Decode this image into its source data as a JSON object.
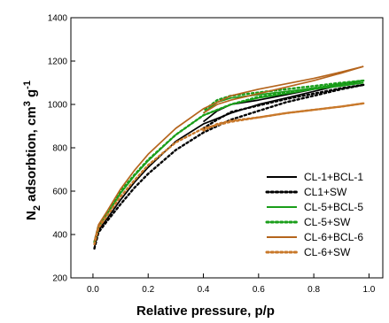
{
  "chart_data": {
    "type": "line",
    "xlabel": "Relative pressure, p/p",
    "ylabel": {
      "base": "N",
      "sub": "2",
      "mid": " adsorbtion, cm",
      "sup1": "3",
      "unit": " g",
      "sup2": "-1"
    },
    "xlim": [
      -0.08,
      1.05
    ],
    "ylim": [
      200,
      1400
    ],
    "xticks": [
      "0.0",
      "0.2",
      "0.4",
      "0.6",
      "0.8",
      "1.0"
    ],
    "xtick_values": [
      0.0,
      0.2,
      0.4,
      0.6,
      0.8,
      1.0
    ],
    "yticks": [
      "200",
      "400",
      "600",
      "800",
      "1000",
      "1200",
      "1400"
    ],
    "ytick_values": [
      200,
      400,
      600,
      800,
      1000,
      1200,
      1400
    ],
    "legend_position": "center-right",
    "series": [
      {
        "name": "CL-1+BCL-1",
        "color": "#000000",
        "style": "solid",
        "adsorption": [
          [
            0.005,
            340
          ],
          [
            0.02,
            420
          ],
          [
            0.05,
            470
          ],
          [
            0.1,
            560
          ],
          [
            0.15,
            640
          ],
          [
            0.2,
            710
          ],
          [
            0.3,
            830
          ],
          [
            0.4,
            910
          ],
          [
            0.5,
            960
          ],
          [
            0.6,
            1000
          ],
          [
            0.7,
            1030
          ],
          [
            0.8,
            1060
          ],
          [
            0.9,
            1090
          ],
          [
            0.98,
            1110
          ]
        ],
        "desorption": [
          [
            0.98,
            1110
          ],
          [
            0.9,
            1095
          ],
          [
            0.8,
            1070
          ],
          [
            0.7,
            1045
          ],
          [
            0.6,
            1020
          ],
          [
            0.5,
            1000
          ],
          [
            0.45,
            970
          ],
          [
            0.4,
            920
          ]
        ]
      },
      {
        "name": "CL1+SW",
        "color": "#000000",
        "style": "dotted",
        "adsorption": [
          [
            0.005,
            335
          ],
          [
            0.02,
            410
          ],
          [
            0.05,
            460
          ],
          [
            0.1,
            540
          ],
          [
            0.15,
            615
          ],
          [
            0.2,
            680
          ],
          [
            0.3,
            790
          ],
          [
            0.4,
            870
          ],
          [
            0.5,
            930
          ],
          [
            0.6,
            970
          ],
          [
            0.7,
            1010
          ],
          [
            0.8,
            1040
          ],
          [
            0.9,
            1070
          ],
          [
            0.98,
            1090
          ]
        ],
        "desorption": [
          [
            0.98,
            1090
          ],
          [
            0.9,
            1075
          ],
          [
            0.8,
            1050
          ],
          [
            0.7,
            1025
          ],
          [
            0.6,
            995
          ],
          [
            0.5,
            965
          ],
          [
            0.45,
            930
          ],
          [
            0.4,
            890
          ]
        ]
      },
      {
        "name": "CL-5+BCL-5",
        "color": "#1a9e1a",
        "style": "solid",
        "adsorption": [
          [
            0.005,
            360
          ],
          [
            0.02,
            430
          ],
          [
            0.05,
            490
          ],
          [
            0.1,
            590
          ],
          [
            0.15,
            670
          ],
          [
            0.2,
            740
          ],
          [
            0.3,
            860
          ],
          [
            0.4,
            950
          ],
          [
            0.5,
            1000
          ],
          [
            0.6,
            1030
          ],
          [
            0.7,
            1050
          ],
          [
            0.8,
            1070
          ],
          [
            0.9,
            1085
          ],
          [
            0.98,
            1100
          ]
        ],
        "desorption": [
          [
            0.98,
            1100
          ],
          [
            0.9,
            1090
          ],
          [
            0.8,
            1075
          ],
          [
            0.7,
            1060
          ],
          [
            0.6,
            1045
          ],
          [
            0.5,
            1030
          ],
          [
            0.45,
            1010
          ],
          [
            0.4,
            960
          ]
        ]
      },
      {
        "name": "CL-5+SW",
        "color": "#1a9e1a",
        "style": "dotted",
        "adsorption": [
          [
            0.005,
            365
          ],
          [
            0.02,
            440
          ],
          [
            0.05,
            500
          ],
          [
            0.1,
            600
          ],
          [
            0.15,
            675
          ],
          [
            0.2,
            745
          ],
          [
            0.3,
            860
          ],
          [
            0.4,
            950
          ],
          [
            0.5,
            1000
          ],
          [
            0.6,
            1035
          ],
          [
            0.7,
            1055
          ],
          [
            0.8,
            1075
          ],
          [
            0.9,
            1095
          ],
          [
            0.98,
            1110
          ]
        ],
        "desorption": [
          [
            0.98,
            1110
          ],
          [
            0.9,
            1100
          ],
          [
            0.8,
            1085
          ],
          [
            0.7,
            1070
          ],
          [
            0.6,
            1055
          ],
          [
            0.5,
            1040
          ],
          [
            0.45,
            1020
          ],
          [
            0.4,
            970
          ]
        ]
      },
      {
        "name": "CL-6+BCL-6",
        "color": "#b5651d",
        "style": "solid",
        "adsorption": [
          [
            0.005,
            370
          ],
          [
            0.02,
            445
          ],
          [
            0.05,
            505
          ],
          [
            0.1,
            610
          ],
          [
            0.15,
            695
          ],
          [
            0.2,
            770
          ],
          [
            0.3,
            890
          ],
          [
            0.4,
            980
          ],
          [
            0.5,
            1040
          ],
          [
            0.6,
            1070
          ],
          [
            0.7,
            1095
          ],
          [
            0.8,
            1120
          ],
          [
            0.9,
            1150
          ],
          [
            0.98,
            1175
          ]
        ],
        "desorption": [
          [
            0.98,
            1175
          ],
          [
            0.9,
            1145
          ],
          [
            0.8,
            1110
          ],
          [
            0.7,
            1080
          ],
          [
            0.6,
            1050
          ],
          [
            0.5,
            1020
          ],
          [
            0.45,
            1000
          ],
          [
            0.4,
            960
          ]
        ]
      },
      {
        "name": "CL-6+SW",
        "color": "#c8782a",
        "style": "dotted",
        "adsorption": [
          [
            0.005,
            355
          ],
          [
            0.02,
            430
          ],
          [
            0.05,
            485
          ],
          [
            0.1,
            575
          ],
          [
            0.15,
            650
          ],
          [
            0.2,
            720
          ],
          [
            0.3,
            825
          ],
          [
            0.4,
            890
          ],
          [
            0.5,
            920
          ],
          [
            0.6,
            940
          ],
          [
            0.7,
            960
          ],
          [
            0.8,
            975
          ],
          [
            0.9,
            990
          ],
          [
            0.98,
            1005
          ]
        ],
        "desorption": [
          [
            0.98,
            1005
          ],
          [
            0.9,
            990
          ],
          [
            0.8,
            975
          ],
          [
            0.7,
            960
          ],
          [
            0.6,
            940
          ],
          [
            0.5,
            925
          ],
          [
            0.45,
            910
          ],
          [
            0.4,
            880
          ]
        ]
      }
    ]
  }
}
